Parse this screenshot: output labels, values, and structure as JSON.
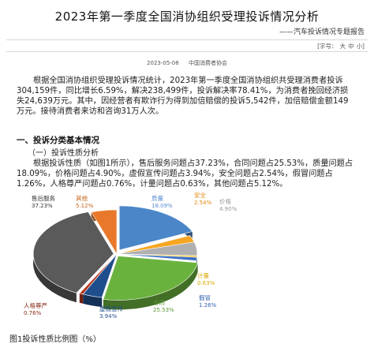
{
  "header": {
    "title": "2023年第一季度全国消协组织受理投诉情况分析",
    "subtitle": "——汽车投诉情况专题报告",
    "font_size_label": "[字号：",
    "font_large": "大",
    "font_medium": "中",
    "font_small": "小]"
  },
  "meta": {
    "date": "2023-05-08",
    "source": "中国消费者协会"
  },
  "body": {
    "paragraph1": "根据全国消协组织受理投诉情况统计，2023年第一季度全国消协组织共受理消费者投诉304,159件，同比增长6.59%，解决238,499件，投诉解决率78.41%，为消费者挽回经济损失24,639万元。其中，因经营者有欺诈行为得到加倍赔偿的投诉5,542件，加倍赔偿金额149万元。接待消费者来访和咨询31万人次。",
    "section_heading": "一、投诉分类基本情况",
    "subsection_heading": "（一）投诉性质分析",
    "paragraph2": "根据投诉性质（如图1所示），售后服务问题占37.23%，合同问题占25.53%，质量问题占18.09%，价格问题占4.90%，虚假宣传问题占3.94%，安全问题占2.54%，假冒问题占1.26%，人格尊严问题占0.76%，计量问题占0.63%，其他问题占5.12%。",
    "figure_caption": "图1投诉性质比例图（%）"
  },
  "chart_data": {
    "type": "pie",
    "style": "3d-exploded",
    "slices": [
      {
        "label": "质量",
        "value": 18.09,
        "value_text": "18.09%",
        "color": "#4a86c8",
        "label_color": "#5b8bd0"
      },
      {
        "label": "安全",
        "value": 2.54,
        "value_text": "2.54%",
        "color": "#f6a623",
        "label_color": "#e08a10"
      },
      {
        "label": "价格",
        "value": 4.9,
        "value_text": "4.90%",
        "color": "#b0b0b0",
        "label_color": "#999999"
      },
      {
        "label": "计量",
        "value": 0.63,
        "value_text": "0.63%",
        "color": "#f2c230",
        "label_color": "#d9a800"
      },
      {
        "label": "假冒",
        "value": 1.26,
        "value_text": "1.26%",
        "color": "#3a6fc4",
        "label_color": "#2f5fb3"
      },
      {
        "label": "合同",
        "value": 25.53,
        "value_text": "25.53%",
        "color": "#6ab23e",
        "label_color": "#5a9a35"
      },
      {
        "label": "虚假宣传",
        "value": 3.94,
        "value_text": "3.94%",
        "color": "#1f4e8c",
        "label_color": "#1f4e8c"
      },
      {
        "label": "人格尊严",
        "value": 0.76,
        "value_text": "0.76%",
        "color": "#b5361c",
        "label_color": "#8a2a15"
      },
      {
        "label": "售后服务",
        "value": 37.23,
        "value_text": "37.23%",
        "color": "#5a5a5a",
        "label_color": "#333333"
      },
      {
        "label": "其他",
        "value": 5.12,
        "value_text": "5.12%",
        "color": "#e8792b",
        "label_color": "#c86010"
      }
    ]
  }
}
